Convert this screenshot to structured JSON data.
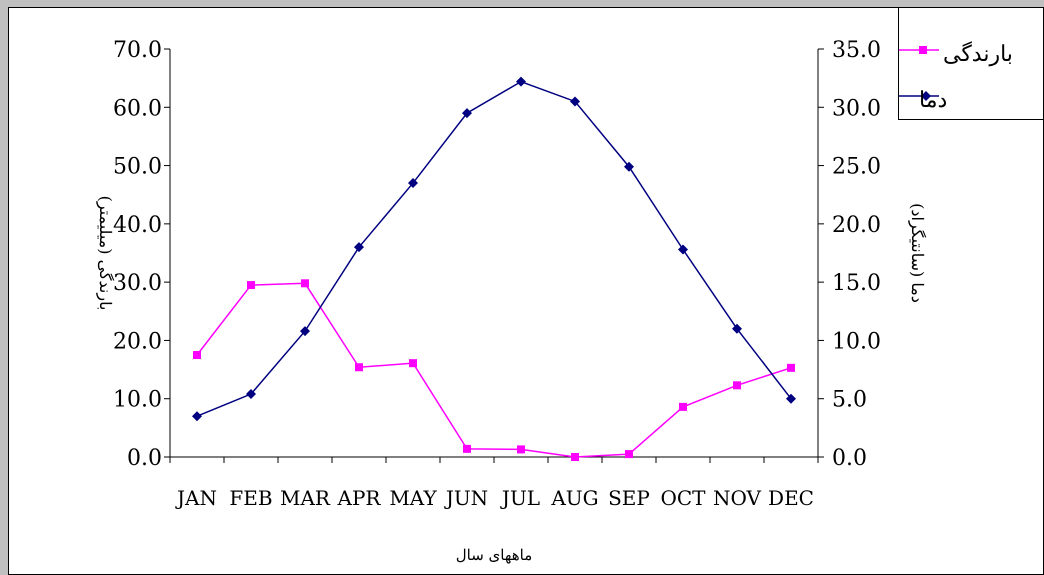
{
  "chart_data": {
    "type": "line",
    "categories": [
      "JAN",
      "FEB",
      "MAR",
      "APR",
      "MAY",
      "JUN",
      "JUL",
      "AUG",
      "SEP",
      "OCT",
      "NOV",
      "DEC"
    ],
    "series": [
      {
        "name": "بارندگی",
        "axis": "left",
        "color": "#ff00ff",
        "marker": "square",
        "values": [
          17.5,
          29.5,
          29.8,
          15.4,
          16.1,
          1.4,
          1.3,
          0.0,
          0.5,
          8.6,
          12.3,
          15.3
        ]
      },
      {
        "name": "دما",
        "axis": "right",
        "color": "#000080",
        "marker": "diamond",
        "values": [
          3.5,
          5.4,
          10.8,
          18.0,
          23.5,
          29.5,
          32.2,
          30.5,
          24.9,
          17.8,
          11.0,
          5.0
        ]
      }
    ],
    "y_left": {
      "label": "بارندگی (میلیمتر)",
      "range": [
        0,
        70
      ],
      "ticks": [
        "0.0",
        "10.0",
        "20.0",
        "30.0",
        "40.0",
        "50.0",
        "60.0",
        "70.0"
      ]
    },
    "y_right": {
      "label": "دما (سانتیگراد)",
      "range": [
        0,
        35
      ],
      "ticks": [
        "0.0",
        "5.0",
        "10.0",
        "15.0",
        "20.0",
        "25.0",
        "30.0",
        "35.0"
      ]
    },
    "xlabel": "ماههای سال",
    "grid": false,
    "legend": "top-right"
  }
}
